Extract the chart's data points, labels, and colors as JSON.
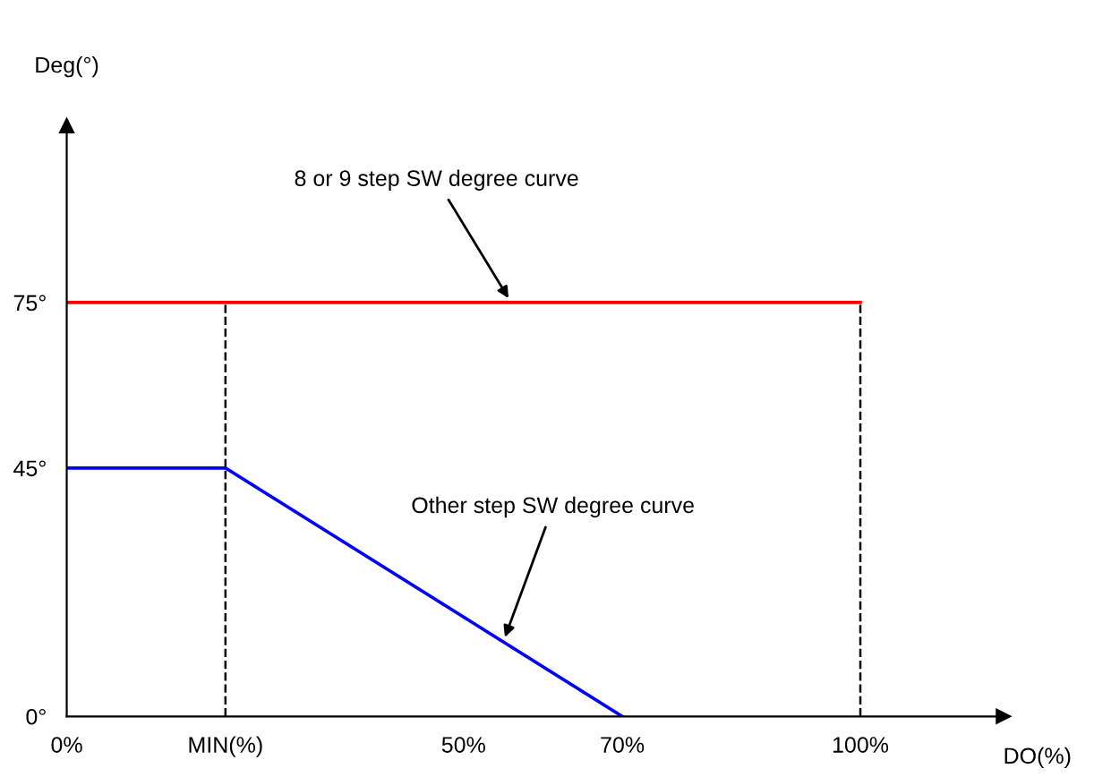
{
  "chart_data": {
    "type": "line",
    "xlabel": "DO(%)",
    "ylabel": "Deg(°)",
    "xlim": [
      0,
      118
    ],
    "ylim": [
      0,
      107
    ],
    "xticks": [
      {
        "value": 0,
        "label": "0%"
      },
      {
        "value": 20,
        "label": "MIN(%)"
      },
      {
        "value": 50,
        "label": "50%"
      },
      {
        "value": 70,
        "label": "70%"
      },
      {
        "value": 100,
        "label": "100%"
      }
    ],
    "yticks": [
      {
        "value": 0,
        "label": "0°"
      },
      {
        "value": 45,
        "label": "45°"
      },
      {
        "value": 75,
        "label": "75°"
      }
    ],
    "series": [
      {
        "color": "#ff0000",
        "x": [
          0,
          100
        ],
        "values": [
          75,
          75
        ]
      },
      {
        "color": "#0000ff",
        "x": [
          0,
          20,
          70
        ],
        "values": [
          45,
          45,
          0
        ]
      }
    ],
    "ref_lines": [
      {
        "axis": "x",
        "value": 20,
        "color": "#000000",
        "line_style": "dashed"
      },
      {
        "axis": "x",
        "value": 100,
        "color": "#000000",
        "line_style": "dashed"
      }
    ],
    "annotations": [
      {
        "text": "8 or 9 step SW degree curve",
        "x": 56,
        "y": 75
      },
      {
        "text": "Other step SW degree curve",
        "x": 55,
        "y": 13.5
      }
    ],
    "grid": false,
    "marker": "none",
    "line_style": "solid"
  }
}
